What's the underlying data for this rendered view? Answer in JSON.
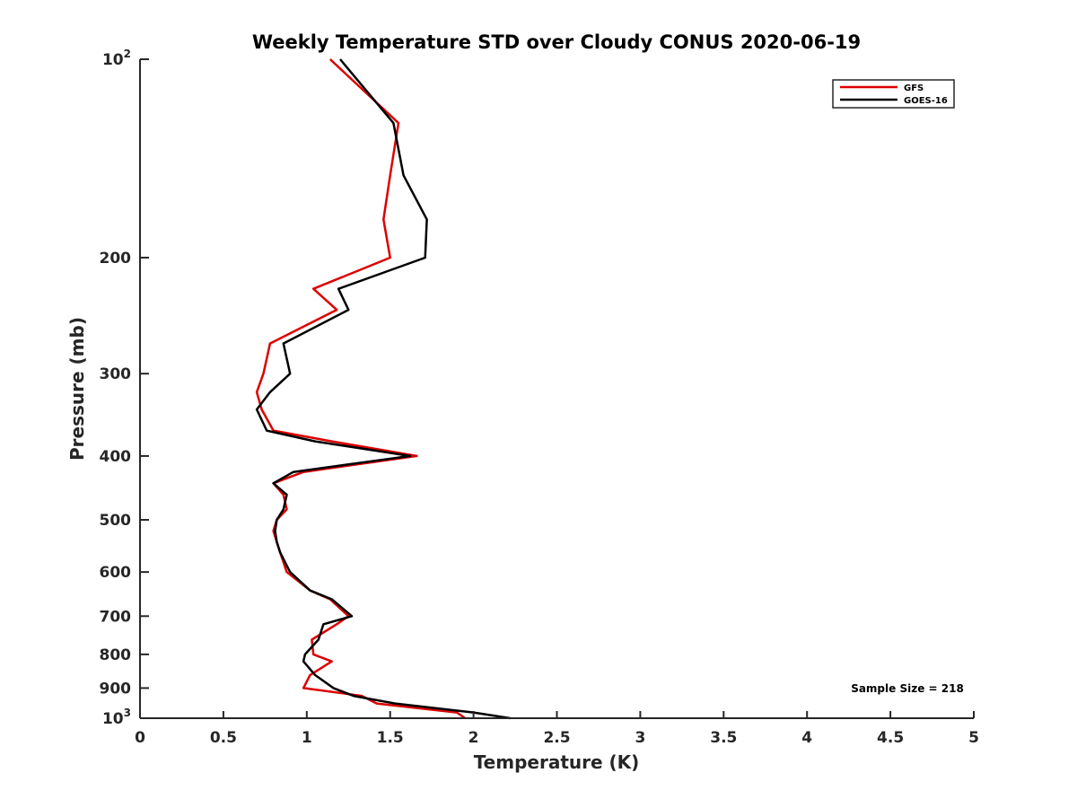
{
  "chart_data": {
    "type": "line",
    "title": "Weekly Temperature STD over Cloudy CONUS 2020-06-19",
    "xlabel": "Temperature (K)",
    "ylabel": "Pressure (mb)",
    "xlim": [
      0,
      5
    ],
    "ylim": [
      100,
      1000
    ],
    "y_scale": "log",
    "y_reversed": true,
    "x_ticks": [
      "0",
      "0.5",
      "1",
      "1.5",
      "2",
      "2.5",
      "3",
      "3.5",
      "4",
      "4.5",
      "5"
    ],
    "y_ticks": [
      {
        "value": 100,
        "base": "10",
        "exp": "2"
      },
      {
        "value": 200,
        "label": "200"
      },
      {
        "value": 300,
        "label": "300"
      },
      {
        "value": 400,
        "label": "400"
      },
      {
        "value": 500,
        "label": "500"
      },
      {
        "value": 600,
        "label": "600"
      },
      {
        "value": 700,
        "label": "700"
      },
      {
        "value": 800,
        "label": "800"
      },
      {
        "value": 900,
        "label": "900"
      },
      {
        "value": 1000,
        "base": "10",
        "exp": "3"
      }
    ],
    "legend_position": "top-right",
    "annotation": "Sample Size = 218",
    "series": [
      {
        "name": "GFS",
        "color": "#dd0000",
        "points": [
          [
            1.14,
            100
          ],
          [
            1.55,
            125
          ],
          [
            1.5,
            150
          ],
          [
            1.46,
            175
          ],
          [
            1.5,
            200
          ],
          [
            1.04,
            223
          ],
          [
            1.18,
            240
          ],
          [
            0.78,
            270
          ],
          [
            0.74,
            300
          ],
          [
            0.7,
            320
          ],
          [
            0.73,
            340
          ],
          [
            0.8,
            366
          ],
          [
            1.15,
            380
          ],
          [
            1.66,
            400
          ],
          [
            0.98,
            423
          ],
          [
            0.8,
            440
          ],
          [
            0.86,
            458
          ],
          [
            0.88,
            482
          ],
          [
            0.82,
            500
          ],
          [
            0.8,
            520
          ],
          [
            0.82,
            540
          ],
          [
            0.84,
            560
          ],
          [
            0.88,
            600
          ],
          [
            1.02,
            640
          ],
          [
            1.14,
            660
          ],
          [
            1.25,
            700
          ],
          [
            1.18,
            720
          ],
          [
            1.03,
            760
          ],
          [
            1.04,
            800
          ],
          [
            1.15,
            820
          ],
          [
            1.02,
            860
          ],
          [
            0.98,
            900
          ],
          [
            1.33,
            925
          ],
          [
            1.42,
            950
          ],
          [
            1.9,
            980
          ],
          [
            1.95,
            1000
          ]
        ]
      },
      {
        "name": "GOES-16",
        "color": "#000000",
        "points": [
          [
            1.2,
            100
          ],
          [
            1.52,
            125
          ],
          [
            1.58,
            150
          ],
          [
            1.72,
            175
          ],
          [
            1.71,
            200
          ],
          [
            1.19,
            223
          ],
          [
            1.25,
            240
          ],
          [
            0.86,
            270
          ],
          [
            0.9,
            300
          ],
          [
            0.78,
            320
          ],
          [
            0.7,
            340
          ],
          [
            0.76,
            366
          ],
          [
            1.05,
            380
          ],
          [
            1.62,
            400
          ],
          [
            0.92,
            423
          ],
          [
            0.8,
            440
          ],
          [
            0.88,
            458
          ],
          [
            0.86,
            482
          ],
          [
            0.82,
            500
          ],
          [
            0.81,
            520
          ],
          [
            0.82,
            540
          ],
          [
            0.84,
            560
          ],
          [
            0.9,
            600
          ],
          [
            1.02,
            640
          ],
          [
            1.15,
            660
          ],
          [
            1.27,
            700
          ],
          [
            1.1,
            720
          ],
          [
            1.07,
            760
          ],
          [
            0.99,
            800
          ],
          [
            0.98,
            820
          ],
          [
            1.05,
            860
          ],
          [
            1.16,
            900
          ],
          [
            1.28,
            925
          ],
          [
            1.53,
            950
          ],
          [
            2.0,
            980
          ],
          [
            2.22,
            1000
          ]
        ]
      }
    ]
  }
}
